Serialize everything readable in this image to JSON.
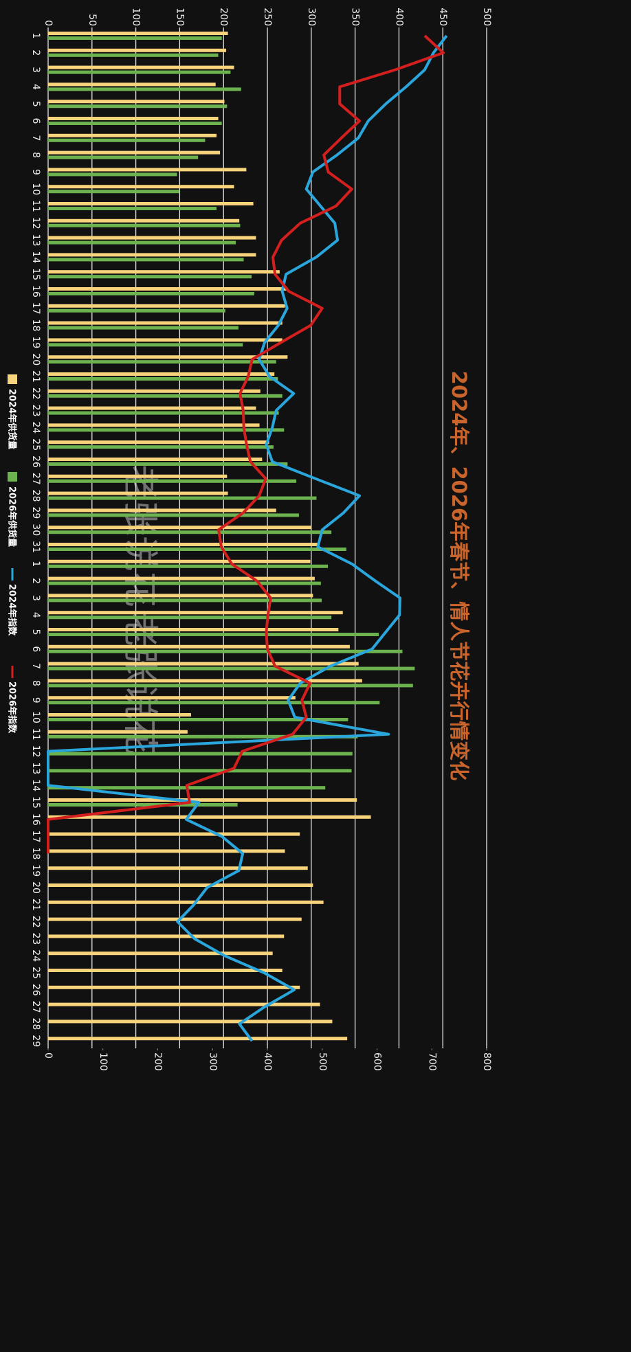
{
  "chart_data": {
    "type": "bar",
    "title": "2024年、2026年春节、情人节花卉行情变化",
    "watermarks": [
      "老张说花",
      "老张说花"
    ],
    "categories": [
      "1",
      "2",
      "3",
      "4",
      "5",
      "6",
      "7",
      "8",
      "9",
      "10",
      "11",
      "12",
      "13",
      "14",
      "15",
      "16",
      "17",
      "18",
      "19",
      "20",
      "21",
      "22",
      "23",
      "24",
      "25",
      "26",
      "27",
      "28",
      "29",
      "30",
      "31",
      "1",
      "2",
      "3",
      "4",
      "5",
      "6",
      "7",
      "8",
      "9",
      "10",
      "11",
      "12",
      "13",
      "14",
      "15",
      "16",
      "17",
      "18",
      "19",
      "20",
      "21",
      "22",
      "23",
      "24",
      "25",
      "26",
      "27",
      "28",
      "29"
    ],
    "ylim": [
      0,
      500
    ],
    "yticks": [
      0,
      50,
      100,
      150,
      200,
      250,
      300,
      350,
      400,
      450,
      500
    ],
    "y2lim": [
      0,
      800
    ],
    "y2ticks": [
      0,
      100,
      200,
      300,
      400,
      500,
      600,
      700,
      800
    ],
    "grid": true,
    "legend": "bottom",
    "series": [
      {
        "name": "2024年供货量",
        "type": "bar",
        "axis": "y",
        "color": "#f7d47c",
        "values": [
          205,
          203,
          212,
          191,
          201,
          194,
          192,
          196,
          226,
          212,
          234,
          218,
          237,
          237,
          264,
          273,
          270,
          267,
          267,
          273,
          258,
          242,
          237,
          241,
          252,
          244,
          204,
          205,
          260,
          300,
          307,
          299,
          304,
          302,
          336,
          331,
          344,
          354,
          358,
          282,
          163,
          159,
          0,
          0,
          0,
          352,
          368,
          287,
          270,
          296,
          302,
          314,
          289,
          269,
          256,
          267,
          287,
          310,
          324,
          341
        ]
      },
      {
        "name": "2026年供货量",
        "type": "bar",
        "axis": "y",
        "color": "#6cb24e",
        "values": [
          198,
          194,
          208,
          220,
          204,
          198,
          179,
          171,
          147,
          150,
          192,
          219,
          214,
          223,
          232,
          235,
          202,
          217,
          222,
          260,
          262,
          267,
          263,
          269,
          257,
          273,
          283,
          306,
          286,
          323,
          340,
          319,
          311,
          312,
          323,
          377,
          404,
          418,
          416,
          378,
          342,
          353,
          347,
          346,
          316,
          216,
          null,
          null,
          null,
          null,
          null,
          null,
          null,
          null,
          null,
          null,
          null,
          null,
          null,
          null
        ]
      },
      {
        "name": "2024年指数",
        "type": "line",
        "axis": "y2",
        "color": "#2aa6dd",
        "values": [
          727,
          703,
          687,
          653,
          616,
          584,
          566,
          527,
          483,
          471,
          497,
          523,
          528,
          489,
          434,
          427,
          436,
          420,
          395,
          385,
          404,
          448,
          416,
          409,
          398,
          409,
          488,
          568,
          539,
          500,
          492,
          554,
          597,
          642,
          641,
          616,
          591,
          515,
          460,
          438,
          450,
          621,
          0,
          0,
          0,
          275,
          252,
          317,
          355,
          348,
          290,
          266,
          236,
          267,
          322,
          394,
          449,
          395,
          349,
          372
        ]
      },
      {
        "name": "2026年指数",
        "type": "line",
        "axis": "y2",
        "color": "#d41f1f",
        "values": [
          687,
          721,
          633,
          532,
          532,
          568,
          535,
          503,
          511,
          554,
          525,
          460,
          426,
          410,
          414,
          439,
          500,
          479,
          425,
          372,
          365,
          350,
          356,
          357,
          362,
          369,
          397,
          385,
          356,
          311,
          316,
          335,
          381,
          406,
          401,
          398,
          400,
          414,
          478,
          463,
          471,
          446,
          354,
          339,
          253,
          258,
          0,
          0,
          0,
          null,
          null,
          null,
          null,
          null,
          null,
          null,
          null,
          null,
          null,
          null
        ]
      }
    ]
  }
}
